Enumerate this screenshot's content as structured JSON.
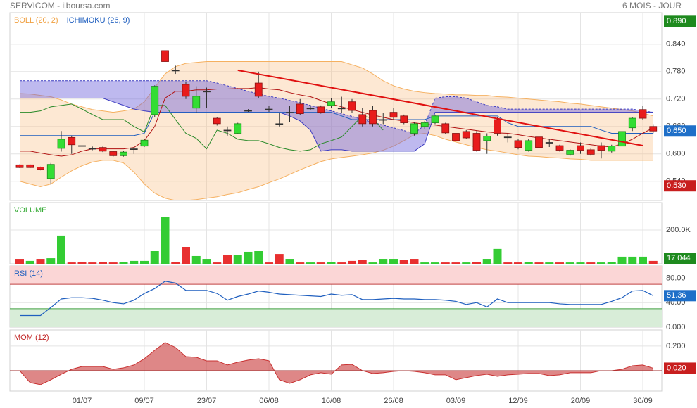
{
  "header": {
    "title": "SERVICOM - ilboursa.com",
    "period": "6 MOIS - JOUR"
  },
  "chart_data": [
    {
      "type": "candlestick",
      "legend": [
        {
          "name": "BOLL (20, 2)",
          "color": "#f0a040"
        },
        {
          "name": "ICHIMOKU (26, 9)",
          "color": "#1f5fbf"
        }
      ],
      "categories": [
        null,
        null,
        null,
        null,
        null,
        null,
        "01/07",
        null,
        null,
        null,
        null,
        null,
        "09/07",
        null,
        null,
        null,
        null,
        null,
        "23/07",
        null,
        null,
        null,
        null,
        null,
        "06/08",
        null,
        null,
        null,
        null,
        null,
        "16/08",
        null,
        null,
        null,
        null,
        null,
        "26/08",
        null,
        null,
        null,
        null,
        null,
        "03/09",
        null,
        null,
        null,
        null,
        null,
        "12/09",
        null,
        null,
        null,
        null,
        null,
        "20/09",
        null,
        null,
        null,
        null,
        null,
        "30/09",
        null
      ],
      "open": [
        0.576,
        0.576,
        0.571,
        0.546,
        0.612,
        0.636,
        0.618,
        0.612,
        0.614,
        0.605,
        0.596,
        0.611,
        0.617,
        0.686,
        0.826,
        0.783,
        0.752,
        0.7,
        0.737,
        0.678,
        0.652,
        0.645,
        0.695,
        0.755,
        0.698,
        0.666,
        0.691,
        0.709,
        0.7,
        0.703,
        0.706,
        0.7,
        0.714,
        0.686,
        0.695,
        0.675,
        0.691,
        0.683,
        0.645,
        0.66,
        0.668,
        0.666,
        0.645,
        0.649,
        0.645,
        0.629,
        0.675,
        0.637,
        0.629,
        0.608,
        0.637,
        0.625,
        0.618,
        0.599,
        0.618,
        0.609,
        0.618,
        0.606,
        0.617,
        0.657,
        0.697,
        0.66
      ],
      "high": [
        0.577,
        0.577,
        0.572,
        0.58,
        0.65,
        0.64,
        0.622,
        0.616,
        0.616,
        0.607,
        0.606,
        0.615,
        0.633,
        0.75,
        0.849,
        0.793,
        0.758,
        0.748,
        0.745,
        0.68,
        0.66,
        0.668,
        0.698,
        0.78,
        0.705,
        0.69,
        0.705,
        0.72,
        0.705,
        0.706,
        0.722,
        0.725,
        0.72,
        0.7,
        0.705,
        0.69,
        0.7,
        0.686,
        0.67,
        0.672,
        0.686,
        0.668,
        0.648,
        0.652,
        0.65,
        0.645,
        0.68,
        0.645,
        0.632,
        0.632,
        0.64,
        0.632,
        0.62,
        0.61,
        0.625,
        0.612,
        0.625,
        0.62,
        0.652,
        0.68,
        0.705,
        0.665
      ],
      "low": [
        0.569,
        0.569,
        0.564,
        0.533,
        0.605,
        0.6,
        0.61,
        0.608,
        0.604,
        0.594,
        0.594,
        0.6,
        0.615,
        0.68,
        0.8,
        0.775,
        0.72,
        0.69,
        0.7,
        0.662,
        0.64,
        0.643,
        0.692,
        0.722,
        0.692,
        0.66,
        0.67,
        0.685,
        0.695,
        0.688,
        0.7,
        0.69,
        0.69,
        0.66,
        0.66,
        0.665,
        0.675,
        0.665,
        0.64,
        0.655,
        0.665,
        0.643,
        0.62,
        0.632,
        0.605,
        0.6,
        0.64,
        0.625,
        0.61,
        0.605,
        0.61,
        0.615,
        0.605,
        0.596,
        0.6,
        0.596,
        0.59,
        0.603,
        0.614,
        0.65,
        0.675,
        0.645
      ],
      "close": [
        0.57,
        0.57,
        0.566,
        0.577,
        0.632,
        0.62,
        0.618,
        0.612,
        0.606,
        0.596,
        0.604,
        0.611,
        0.63,
        0.748,
        0.802,
        0.783,
        0.726,
        0.726,
        0.737,
        0.666,
        0.652,
        0.666,
        0.695,
        0.726,
        0.698,
        0.666,
        0.691,
        0.688,
        0.7,
        0.691,
        0.714,
        0.7,
        0.695,
        0.666,
        0.666,
        0.675,
        0.68,
        0.668,
        0.666,
        0.668,
        0.683,
        0.646,
        0.629,
        0.635,
        0.608,
        0.639,
        0.645,
        0.637,
        0.614,
        0.629,
        0.614,
        0.625,
        0.608,
        0.608,
        0.608,
        0.599,
        0.608,
        0.617,
        0.649,
        0.678,
        0.678,
        0.65
      ],
      "bollinger": {
        "upper": [
          0.732,
          0.731,
          0.728,
          0.725,
          0.718,
          0.709,
          0.703,
          0.697,
          0.694,
          0.691,
          0.694,
          0.698,
          0.714,
          0.745,
          0.775,
          0.791,
          0.798,
          0.8,
          0.802,
          0.802,
          0.802,
          0.802,
          0.802,
          0.802,
          0.802,
          0.802,
          0.802,
          0.802,
          0.802,
          0.802,
          0.802,
          0.802,
          0.795,
          0.788,
          0.775,
          0.76,
          0.749,
          0.742,
          0.737,
          0.734,
          0.732,
          0.731,
          0.729,
          0.729,
          0.728,
          0.728,
          0.725,
          0.724,
          0.722,
          0.72,
          0.718,
          0.716,
          0.714,
          0.711,
          0.709,
          0.706,
          0.703,
          0.7,
          0.697,
          0.694,
          0.689,
          0.683
        ],
        "middle": [
          0.606,
          0.606,
          0.602,
          0.598,
          0.595,
          0.598,
          0.606,
          0.611,
          0.611,
          0.611,
          0.611,
          0.614,
          0.629,
          0.66,
          0.722,
          0.737,
          0.737,
          0.74,
          0.74,
          0.742,
          0.742,
          0.743,
          0.743,
          0.745,
          0.742,
          0.74,
          0.734,
          0.729,
          0.725,
          0.717,
          0.709,
          0.703,
          0.697,
          0.691,
          0.685,
          0.68,
          0.675,
          0.672,
          0.668,
          0.665,
          0.663,
          0.66,
          0.657,
          0.654,
          0.651,
          0.648,
          0.646,
          0.645,
          0.642,
          0.638,
          0.635,
          0.632,
          0.629,
          0.626,
          0.623,
          0.62,
          0.617,
          0.615,
          0.622,
          0.632,
          0.645,
          0.657
        ],
        "lower": [
          0.54,
          0.534,
          0.528,
          0.534,
          0.549,
          0.563,
          0.574,
          0.582,
          0.586,
          0.586,
          0.58,
          0.56,
          0.534,
          0.514,
          0.503,
          0.498,
          0.498,
          0.5,
          0.503,
          0.506,
          0.511,
          0.515,
          0.522,
          0.528,
          0.537,
          0.545,
          0.555,
          0.565,
          0.574,
          0.583,
          0.589,
          0.592,
          0.595,
          0.598,
          0.602,
          0.608,
          0.617,
          0.629,
          0.642,
          0.645,
          0.64,
          0.632,
          0.626,
          0.62,
          0.614,
          0.609,
          0.606,
          0.602,
          0.598,
          0.595,
          0.594,
          0.592,
          0.591,
          0.589,
          0.588,
          0.586,
          0.586,
          0.586,
          0.586,
          0.586,
          0.586,
          0.586
        ]
      },
      "ichimoku": {
        "kijun": [
          0.64,
          0.64,
          0.64,
          0.64,
          0.64,
          0.64,
          0.64,
          0.64,
          0.64,
          0.64,
          0.64,
          0.64,
          0.645,
          0.691,
          0.691,
          0.691,
          0.691,
          0.691,
          0.691,
          0.691,
          0.691,
          0.691,
          0.691,
          0.691,
          0.691,
          0.691,
          0.691,
          0.691,
          0.691,
          0.691,
          0.691,
          0.683,
          0.675,
          0.675,
          0.675,
          0.675,
          0.675,
          0.675,
          0.675,
          0.675,
          0.683,
          0.683,
          0.683,
          0.683,
          0.683,
          0.683,
          0.683,
          0.668,
          0.66,
          0.66,
          0.66,
          0.66,
          0.66,
          0.66,
          0.66,
          0.66,
          0.652,
          0.645,
          0.645,
          0.645,
          0.645,
          0.645
        ],
        "chikou": [
          0.691,
          0.691,
          0.694,
          0.703,
          0.706,
          0.709,
          0.698,
          0.686,
          0.675,
          0.675,
          0.675,
          0.66,
          0.648,
          0.706,
          0.706,
          0.675,
          0.645,
          0.634,
          0.611,
          0.652,
          0.645,
          0.632,
          0.629,
          0.629,
          0.622,
          0.614,
          0.609,
          0.606,
          0.609,
          0.622,
          0.629,
          0.637,
          0.66,
          0.683,
          0.678,
          0.652,
          null,
          null,
          null,
          null,
          null,
          null,
          null,
          null,
          null,
          null,
          null,
          null,
          null,
          null,
          null,
          null,
          null,
          null,
          null,
          null,
          null,
          null,
          null,
          null,
          null,
          null
        ],
        "span_a": [
          0.76,
          0.76,
          0.76,
          0.76,
          0.76,
          0.76,
          0.76,
          0.76,
          0.76,
          0.76,
          0.76,
          0.76,
          0.76,
          0.76,
          0.76,
          0.76,
          0.76,
          0.76,
          0.76,
          0.755,
          0.749,
          0.743,
          0.737,
          0.731,
          0.726,
          0.722,
          0.717,
          0.712,
          0.706,
          0.7,
          0.694,
          0.688,
          0.682,
          0.675,
          0.669,
          0.663,
          0.657,
          0.651,
          0.645,
          0.663,
          0.722,
          0.725,
          0.725,
          0.722,
          0.714,
          0.706,
          0.703,
          0.698,
          0.698,
          0.698,
          0.698,
          0.698,
          0.698,
          0.698,
          0.698,
          0.698,
          0.698,
          0.698,
          0.698,
          0.698,
          0.694,
          0.691
        ],
        "span_b": [
          0.722,
          0.722,
          0.722,
          0.722,
          0.722,
          0.722,
          0.722,
          0.722,
          0.722,
          0.714,
          0.706,
          0.698,
          0.694,
          0.691,
          0.691,
          0.691,
          0.691,
          0.691,
          0.691,
          0.691,
          0.691,
          0.691,
          0.691,
          0.691,
          0.691,
          0.691,
          0.683,
          0.672,
          0.652,
          0.606,
          0.609,
          0.609,
          0.606,
          0.606,
          0.606,
          0.606,
          0.606,
          0.606,
          0.606,
          0.622,
          0.691,
          0.691,
          0.691,
          0.691,
          0.691,
          0.691,
          0.691,
          0.691,
          0.691,
          0.691,
          0.691,
          0.691,
          0.691,
          0.691,
          0.691,
          0.691,
          0.691,
          0.691,
          0.691,
          0.691,
          0.691,
          0.691
        ]
      },
      "trend_line": {
        "x": [
          21,
          60
        ],
        "values": [
          0.783,
          0.618
        ],
        "color": "#e01010"
      },
      "ylim": [
        0.498,
        0.909
      ],
      "yticks": [
        {
          "value": 0.84,
          "label": "0.840"
        },
        {
          "value": 0.78,
          "label": "0.780"
        },
        {
          "value": 0.72,
          "label": "0.720"
        },
        {
          "value": 0.66,
          "label": "0.660"
        },
        {
          "value": 0.6,
          "label": "0.600"
        },
        {
          "value": 0.54,
          "label": "0.540"
        }
      ],
      "badges": [
        {
          "value": 0.89,
          "label": "0.890",
          "color": "#1e8a1e"
        },
        {
          "value": 0.65,
          "label": "0.650",
          "color": "#1e6fc8"
        },
        {
          "value": 0.53,
          "label": "0.530",
          "color": "#c81e1e"
        }
      ],
      "grid": true
    },
    {
      "type": "bar",
      "legend": [
        {
          "name": "VOLUME",
          "color": "#33aa33"
        }
      ],
      "values": [
        29000,
        17000,
        29000,
        33000,
        167000,
        8000,
        12000,
        8000,
        12000,
        8000,
        12000,
        17000,
        17000,
        75000,
        279000,
        12000,
        100000,
        46000,
        29000,
        8000,
        54000,
        54000,
        71000,
        75000,
        8000,
        58000,
        29000,
        8000,
        8000,
        8000,
        12000,
        8000,
        17000,
        21000,
        8000,
        29000,
        29000,
        21000,
        29000,
        8000,
        8000,
        8000,
        8000,
        8000,
        12000,
        29000,
        88000,
        8000,
        8000,
        12000,
        8000,
        8000,
        8000,
        8000,
        8000,
        8000,
        8000,
        12000,
        42000,
        42000,
        42000,
        17044
      ],
      "up_color": "#33cc33",
      "down_color": "#e83030",
      "ylim": [
        0,
        362500
      ],
      "yticks": [
        {
          "value": 200000,
          "label": "200.0K"
        }
      ],
      "badges": [
        {
          "value": 17044,
          "label": "17 044",
          "color": "#1e8a1e"
        }
      ],
      "grid": true
    },
    {
      "type": "line",
      "legend": [
        {
          "name": "RSI (14)",
          "color": "#1f5fbf"
        }
      ],
      "values": [
        19,
        19,
        19,
        32,
        46,
        48,
        48,
        47,
        44,
        40,
        38,
        44,
        55,
        63,
        75,
        72,
        60,
        60,
        60,
        55,
        44,
        50,
        54,
        59,
        57,
        54,
        53,
        52,
        51,
        50,
        54,
        52,
        53,
        45,
        45,
        46,
        47,
        46,
        46,
        45,
        45,
        44,
        42,
        37,
        40,
        33,
        46,
        40,
        40,
        40,
        40,
        40,
        38,
        37,
        37,
        37,
        37,
        42,
        48,
        59,
        60,
        51.36
      ],
      "color": "#1f5fbf",
      "overbought": 70,
      "oversold": 30,
      "ylim": [
        0,
        100
      ],
      "yticks": [
        {
          "value": 80,
          "label": "80.00"
        },
        {
          "value": 40,
          "label": "40.00"
        },
        {
          "value": 0,
          "label": "0.000"
        }
      ],
      "badges": [
        {
          "value": 51.36,
          "label": "51.36",
          "color": "#1e6fc8"
        }
      ],
      "grid": true
    },
    {
      "type": "area",
      "legend": [
        {
          "name": "MOM (12)",
          "color": "#c02020"
        }
      ],
      "values": [
        0,
        -0.097,
        -0.114,
        -0.074,
        -0.029,
        0.011,
        0.034,
        0.034,
        0.034,
        0.011,
        0.023,
        0.046,
        0.097,
        0.166,
        0.229,
        0.189,
        0.114,
        0.109,
        0.08,
        0.08,
        0.046,
        0.069,
        0.086,
        0.097,
        0.08,
        -0.074,
        -0.103,
        -0.074,
        -0.034,
        -0.017,
        -0.029,
        0.046,
        0.051,
        0,
        -0.023,
        -0.017,
        -0.006,
        0,
        -0.006,
        -0.017,
        -0.034,
        -0.034,
        -0.074,
        -0.057,
        -0.04,
        -0.029,
        -0.046,
        -0.034,
        -0.029,
        -0.023,
        -0.023,
        -0.04,
        -0.034,
        -0.017,
        -0.017,
        -0.017,
        0,
        0,
        0.011,
        0.04,
        0.046,
        0.02
      ],
      "color": "#c83030",
      "ylim": [
        -0.166,
        0.331
      ],
      "yticks": [
        {
          "value": 0.2,
          "label": "0.200"
        },
        {
          "value": 0,
          "label": "0.000"
        }
      ],
      "badges": [
        {
          "value": 0.02,
          "label": "0.020",
          "color": "#c81e1e"
        }
      ],
      "grid": true
    }
  ]
}
